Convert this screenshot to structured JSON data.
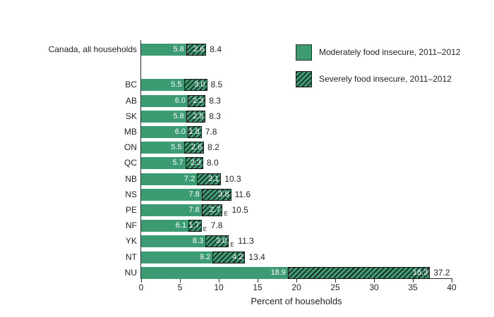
{
  "colors": {
    "bar_green": "#3c9b73",
    "hatch_line": "#161616",
    "axis": "#2b2b2b",
    "text_dark": "#231f20",
    "bar_value_text": "#ffffff"
  },
  "chart_data": {
    "type": "bar",
    "orientation": "horizontal-stacked",
    "xlabel": "Percent of households",
    "xlim": [
      0,
      40
    ],
    "xticks": [
      0,
      5,
      10,
      15,
      20,
      25,
      30,
      35,
      40
    ],
    "grid": false,
    "legend_position": "top-right",
    "legend": [
      {
        "label": "Moderately food insecure, 2011–2012",
        "style": "solid"
      },
      {
        "label": "Severely food insecure, 2011–2012",
        "style": "hatched"
      }
    ],
    "estimate_flag_symbol": "E",
    "rows": [
      {
        "label": "Canada, all households",
        "moderate": "5.8",
        "severe": "2.6",
        "total": "8.4",
        "estimate_flag": false
      },
      {
        "label": "BC",
        "moderate": "5.5",
        "severe": "3.0",
        "total": "8.5",
        "estimate_flag": false
      },
      {
        "label": "AB",
        "moderate": "6.0",
        "severe": "2.3",
        "total": "8.3",
        "estimate_flag": false
      },
      {
        "label": "SK",
        "moderate": "5.8",
        "severe": "2.5",
        "total": "8.3",
        "estimate_flag": false
      },
      {
        "label": "MB",
        "moderate": "6.0",
        "severe": "1.8",
        "total": "7.8",
        "estimate_flag": false
      },
      {
        "label": "ON",
        "moderate": "5.5",
        "severe": "2.6",
        "total": "8.2",
        "estimate_flag": false
      },
      {
        "label": "QC",
        "moderate": "5.7",
        "severe": "2.3",
        "total": "8.0",
        "estimate_flag": false
      },
      {
        "label": "NB",
        "moderate": "7.2",
        "severe": "3.1",
        "total": "10.3",
        "estimate_flag": false
      },
      {
        "label": "NS",
        "moderate": "7.8",
        "severe": "3.8",
        "total": "11.6",
        "estimate_flag": false
      },
      {
        "label": "PE",
        "moderate": "7.8",
        "severe": "2.7",
        "total": "10.5",
        "estimate_flag": true
      },
      {
        "label": "NF",
        "moderate": "6.1",
        "severe": "1.7",
        "total": "7.8",
        "estimate_flag": true
      },
      {
        "label": "YK",
        "moderate": "8.3",
        "severe": "3.0",
        "total": "11.3",
        "estimate_flag": true
      },
      {
        "label": "NT",
        "moderate": "9.2",
        "severe": "4.2",
        "total": "13.4",
        "estimate_flag": false
      },
      {
        "label": "NU",
        "moderate": "18.9",
        "severe": "18.3",
        "total": "37.2",
        "estimate_flag": false
      }
    ]
  }
}
